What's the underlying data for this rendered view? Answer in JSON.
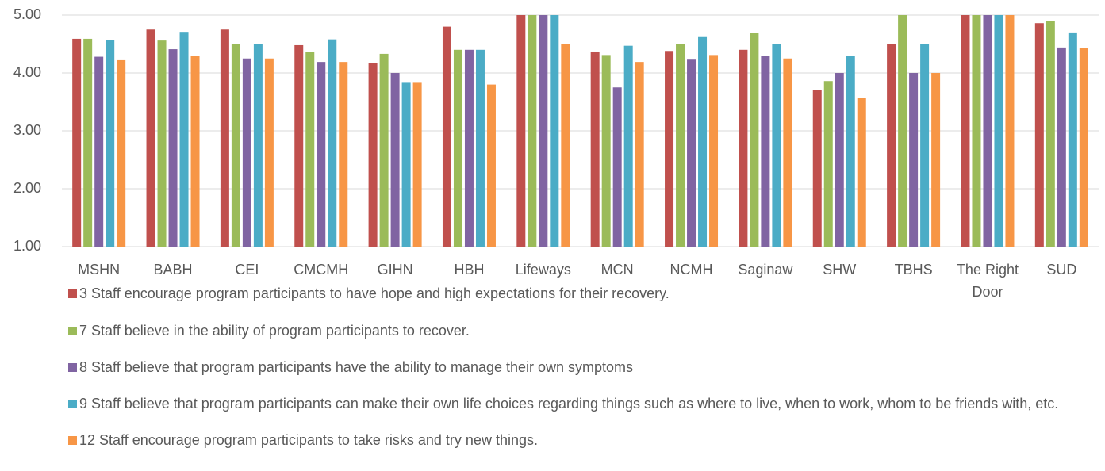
{
  "chart_data": {
    "type": "bar",
    "categories": [
      "MSHN",
      "BABH",
      "CEI",
      "CMCMH",
      "GIHN",
      "HBH",
      "Lifeways",
      "MCN",
      "NCMH",
      "Saginaw",
      "SHW",
      "TBHS",
      "The Right Door",
      "SUD"
    ],
    "series": [
      {
        "name": "3 Staff encourage program participants to have hope and high expectations for their recovery.",
        "color": "#c0504d",
        "values": [
          4.59,
          4.75,
          4.75,
          4.48,
          4.17,
          4.8,
          5.0,
          4.37,
          4.38,
          4.4,
          3.71,
          4.5,
          5.0,
          4.86
        ]
      },
      {
        "name": "7 Staff believe in the ability of program participants to recover.",
        "color": "#9bbb59",
        "values": [
          4.59,
          4.56,
          4.5,
          4.36,
          4.33,
          4.4,
          5.0,
          4.31,
          4.5,
          4.69,
          3.86,
          5.0,
          5.0,
          4.9
        ]
      },
      {
        "name": "8 Staff believe that program participants have the ability to manage their own symptoms",
        "color": "#8064a2",
        "values": [
          4.28,
          4.41,
          4.25,
          4.19,
          4.0,
          4.4,
          5.0,
          3.75,
          4.23,
          4.3,
          4.0,
          4.0,
          5.0,
          4.44
        ]
      },
      {
        "name": "9 Staff believe that program participants can make their own life choices regarding things such as where to live, when to work, whom to be friends with, etc.",
        "color": "#4bacc6",
        "values": [
          4.57,
          4.71,
          4.5,
          4.58,
          3.83,
          4.4,
          5.0,
          4.47,
          4.62,
          4.5,
          4.29,
          4.5,
          5.0,
          4.7
        ]
      },
      {
        "name": "12 Staff encourage program participants to take risks and try new things.",
        "color": "#f79646",
        "values": [
          4.22,
          4.3,
          4.25,
          4.19,
          3.83,
          3.8,
          4.5,
          4.19,
          4.31,
          4.25,
          3.57,
          4.0,
          5.0,
          4.43
        ]
      }
    ],
    "ylim": [
      1,
      5
    ],
    "yticks": [
      {
        "value": 1,
        "label": "1.00"
      },
      {
        "value": 2,
        "label": "2.00"
      },
      {
        "value": 3,
        "label": "3.00"
      },
      {
        "value": 4,
        "label": "4.00"
      },
      {
        "value": 5,
        "label": "5.00"
      }
    ],
    "grid": true,
    "legend": "bottom"
  }
}
